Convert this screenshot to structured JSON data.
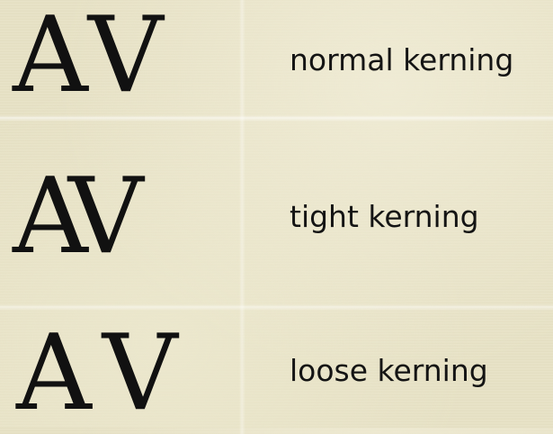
{
  "rows": [
    {
      "letters": [
        "A",
        "V"
      ],
      "label": "normal kerning"
    },
    {
      "letters": [
        "A",
        "V"
      ],
      "label": "tight kerning"
    },
    {
      "letters": [
        "A",
        "V"
      ],
      "label": "loose kerning"
    }
  ],
  "colors": {
    "paper": "#e7e2c6",
    "ink": "#111111"
  }
}
